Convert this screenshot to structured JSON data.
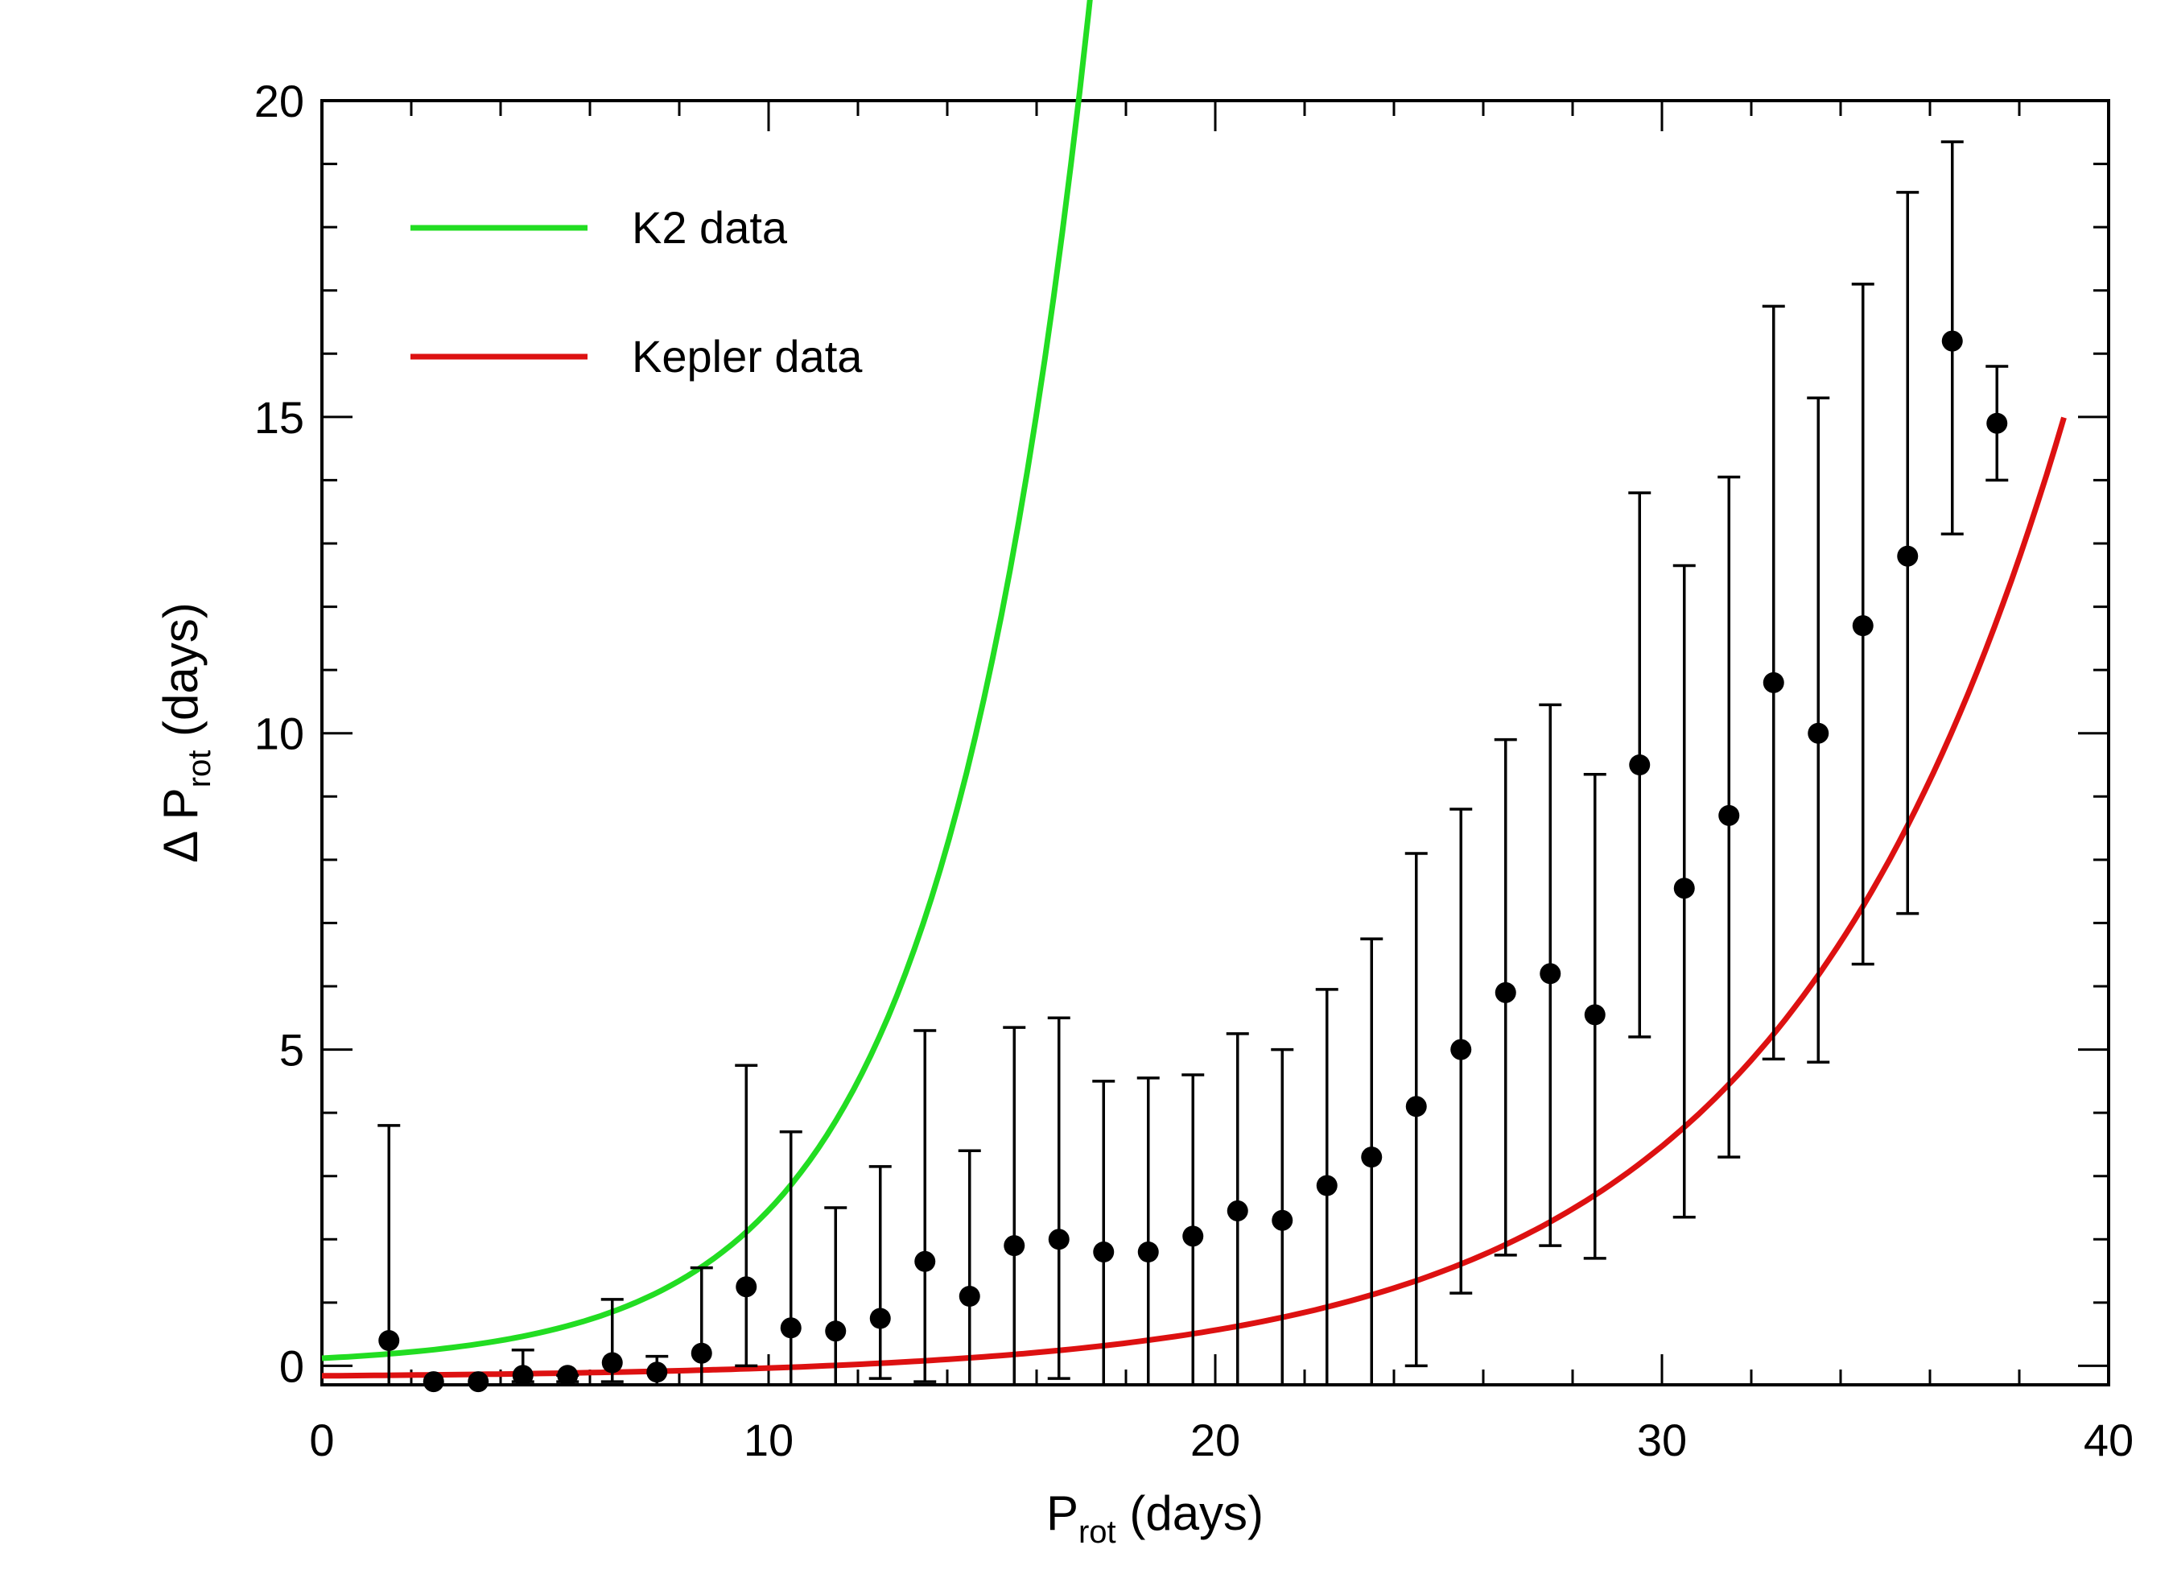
{
  "chart_data": {
    "type": "scatter",
    "xlabel": {
      "main": "P",
      "sub": "rot",
      "rest": " (days)"
    },
    "ylabel": {
      "prefix": "Δ P",
      "sub": "rot",
      "rest": " (days)"
    },
    "xlim": [
      0,
      40
    ],
    "ylim": [
      -0.3,
      20
    ],
    "xticks": [
      0,
      10,
      20,
      30,
      40
    ],
    "xtick_labels": [
      "0",
      "10",
      "20",
      "30",
      "40"
    ],
    "yticks": [
      0,
      5,
      10,
      15,
      20
    ],
    "ytick_labels": [
      "0",
      "5",
      "10",
      "15",
      "20"
    ],
    "grid": false,
    "legend_position": "top-left",
    "points": {
      "x": [
        1.5,
        2.5,
        3.5,
        4.5,
        5.5,
        6.5,
        7.5,
        8.5,
        9.5,
        10.5,
        11.5,
        12.5,
        13.5,
        14.5,
        15.5,
        16.5,
        17.5,
        18.5,
        19.5,
        20.5,
        21.5,
        22.5,
        23.5,
        24.5,
        25.5,
        26.5,
        27.5,
        28.5,
        29.5,
        30.5,
        31.5,
        32.5,
        33.5,
        34.5,
        35.5,
        36.5,
        37.5
      ],
      "y": [
        0.4,
        -0.3,
        -0.25,
        -0.15,
        -0.15,
        0.05,
        -0.1,
        0.2,
        1.25,
        0.6,
        0.55,
        0.75,
        1.65,
        1.1,
        1.9,
        2.0,
        1.8,
        1.8,
        2.05,
        2.45,
        2.3,
        2.85,
        3.3,
        4.1,
        5.0,
        5.9,
        6.2,
        5.55,
        9.5,
        7.55,
        8.7,
        10.8,
        10.0,
        11.7,
        12.8,
        16.2,
        14.9
      ],
      "err_low": [
        0.7,
        0.1,
        0.1,
        0.1,
        0.1,
        0.3,
        0.2,
        0.5,
        1.25,
        0.9,
        0.85,
        0.95,
        1.9,
        1.4,
        2.2,
        2.2,
        2.1,
        2.1,
        2.35,
        2.75,
        2.6,
        3.15,
        3.6,
        4.1,
        3.85,
        4.15,
        4.3,
        3.85,
        4.3,
        5.2,
        5.4,
        5.95,
        5.2,
        5.35,
        5.65,
        3.05,
        0.9
      ],
      "err_high": [
        3.4,
        0.0,
        0.0,
        0.4,
        0.0,
        1.0,
        0.25,
        1.35,
        3.5,
        3.1,
        1.95,
        2.4,
        3.65,
        2.3,
        3.45,
        3.5,
        2.7,
        2.75,
        2.55,
        2.8,
        2.7,
        3.1,
        3.45,
        4.0,
        3.8,
        4.0,
        4.25,
        3.8,
        4.3,
        5.1,
        5.35,
        5.95,
        5.3,
        5.4,
        5.75,
        3.15,
        0.9
      ]
    },
    "series": [
      {
        "name": "K2 data",
        "color": "#22dd22",
        "a": 0.12,
        "b": 3.02,
        "c": 0.0,
        "x_range": [
          0,
          39
        ]
      },
      {
        "name": "Kepler data",
        "color": "#dd1111",
        "a": 0.032,
        "b": 1.58,
        "c": -0.19,
        "x_range": [
          0,
          39
        ]
      }
    ],
    "marker_color": "#000000"
  }
}
